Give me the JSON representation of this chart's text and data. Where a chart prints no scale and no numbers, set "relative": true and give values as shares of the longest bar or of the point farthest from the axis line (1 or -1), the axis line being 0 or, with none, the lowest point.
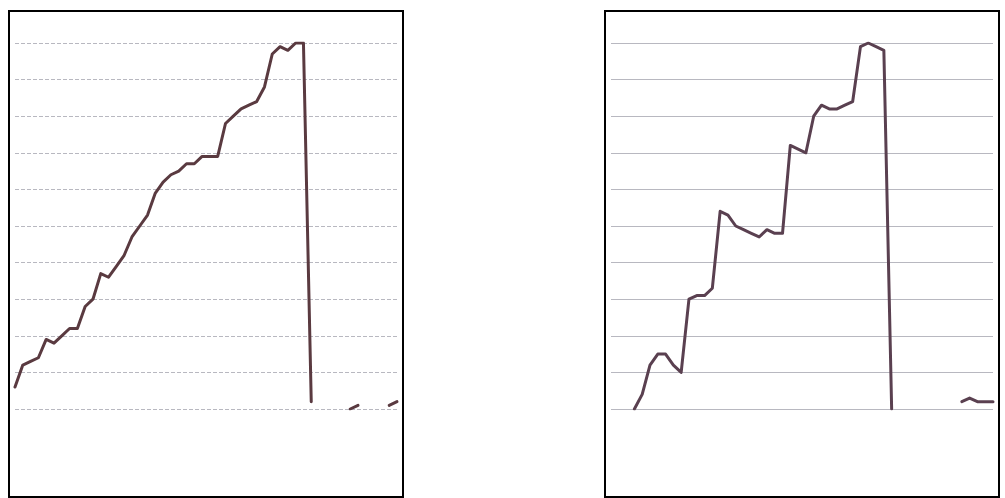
{
  "chart_data": [
    {
      "type": "line",
      "relative": true,
      "grid": "y",
      "marker": "none",
      "line_style": "solid",
      "categories": [
        null,
        null,
        null,
        null,
        null,
        null,
        null,
        null,
        null,
        null,
        null,
        null,
        null,
        null,
        null,
        null,
        null,
        null,
        null,
        null,
        null,
        null,
        null,
        null,
        null,
        null,
        null,
        null,
        null,
        null,
        null,
        null,
        null,
        null,
        null,
        null,
        null,
        null,
        null,
        null,
        null,
        null,
        null,
        null,
        null,
        null,
        null,
        null,
        null,
        null
      ],
      "series": [
        {
          "color": "#5a3a40",
          "values": [
            0.06,
            0.12,
            0.13,
            0.14,
            0.19,
            0.18,
            0.2,
            0.22,
            0.22,
            0.28,
            0.3,
            0.37,
            0.36,
            0.39,
            0.42,
            0.47,
            0.5,
            0.53,
            0.59,
            0.62,
            0.64,
            0.65,
            0.67,
            0.67,
            0.69,
            0.69,
            0.69,
            0.78,
            0.8,
            0.82,
            0.83,
            0.84,
            0.88,
            0.97,
            0.99,
            0.98,
            1,
            1,
            0.02,
            null,
            null,
            null,
            null,
            null,
            null,
            null,
            null,
            null,
            null,
            null
          ]
        },
        {
          "color": "#5a3a40",
          "values": [
            null,
            null,
            null,
            null,
            null,
            null,
            null,
            null,
            null,
            null,
            null,
            null,
            null,
            null,
            null,
            null,
            null,
            null,
            null,
            null,
            null,
            null,
            null,
            null,
            null,
            null,
            null,
            null,
            null,
            null,
            null,
            null,
            null,
            null,
            null,
            null,
            null,
            null,
            null,
            null,
            null,
            null,
            null,
            0,
            0.01,
            null,
            null,
            null,
            null,
            null
          ]
        },
        {
          "color": "#5a3a40",
          "values": [
            null,
            null,
            null,
            null,
            null,
            null,
            null,
            null,
            null,
            null,
            null,
            null,
            null,
            null,
            null,
            null,
            null,
            null,
            null,
            null,
            null,
            null,
            null,
            null,
            null,
            null,
            null,
            null,
            null,
            null,
            null,
            null,
            null,
            null,
            null,
            null,
            null,
            null,
            null,
            null,
            null,
            null,
            null,
            null,
            null,
            null,
            null,
            null,
            0.01,
            0.02
          ]
        }
      ]
    },
    {
      "type": "line",
      "relative": true,
      "grid": "y",
      "marker": "none",
      "line_style": "solid",
      "categories": [
        null,
        null,
        null,
        null,
        null,
        null,
        null,
        null,
        null,
        null,
        null,
        null,
        null,
        null,
        null,
        null,
        null,
        null,
        null,
        null,
        null,
        null,
        null,
        null,
        null,
        null,
        null,
        null,
        null,
        null,
        null,
        null,
        null,
        null,
        null,
        null,
        null,
        null,
        null,
        null,
        null,
        null,
        null,
        null,
        null,
        null,
        null,
        null,
        null,
        null
      ],
      "series": [
        {
          "color": "#5a4050",
          "values": [
            null,
            null,
            null,
            0,
            0.04,
            0.12,
            0.15,
            0.15,
            0.12,
            0.1,
            0.3,
            0.31,
            0.31,
            0.33,
            0.54,
            0.53,
            0.5,
            0.49,
            0.48,
            0.47,
            0.49,
            0.48,
            0.48,
            0.72,
            0.71,
            0.7,
            0.8,
            0.83,
            0.82,
            0.82,
            0.83,
            0.84,
            0.99,
            1,
            0.99,
            0.98,
            0,
            null,
            null,
            null,
            null,
            null,
            null,
            null,
            null,
            null,
            null,
            null,
            null,
            null
          ]
        },
        {
          "color": "#5a4050",
          "values": [
            null,
            null,
            null,
            null,
            null,
            null,
            null,
            null,
            null,
            null,
            null,
            null,
            null,
            null,
            null,
            null,
            null,
            null,
            null,
            null,
            null,
            null,
            null,
            null,
            null,
            null,
            null,
            null,
            null,
            null,
            null,
            null,
            null,
            null,
            null,
            null,
            null,
            null,
            null,
            null,
            null,
            null,
            null,
            null,
            null,
            0.02,
            0.03,
            0.02,
            0.02,
            0.02
          ]
        }
      ]
    }
  ]
}
